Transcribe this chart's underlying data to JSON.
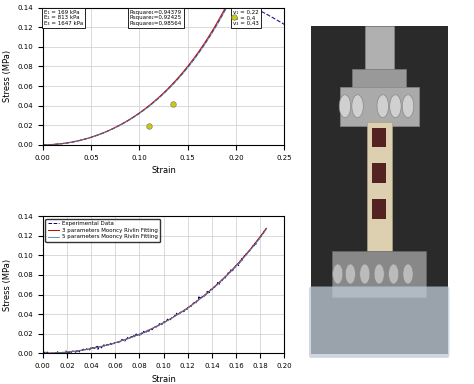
{
  "top_plot": {
    "xlabel": "Strain",
    "ylabel": "Stress (MPa)",
    "xlim": [
      0,
      0.25
    ],
    "ylim": [
      0,
      0.14
    ],
    "yticks": [
      0,
      0.02,
      0.04,
      0.06,
      0.08,
      0.1,
      0.12,
      0.14
    ],
    "xticks": [
      0,
      0.05,
      0.1,
      0.15,
      0.2,
      0.25
    ],
    "box1": "E₁ = 169 kPa\nE₂ = 813 kPa\nE₃ = 1647 kPa",
    "box2": "Rsquare₁=0,94379\nRsquare₂=0,92425\nRsquare₃=0,98564",
    "box3": "v₁ = 0,22\nv₂ = 0,4\nv₃ = 0,43",
    "marker_points": [
      [
        0.11,
        0.019
      ],
      [
        0.135,
        0.042
      ],
      [
        0.198,
        0.13
      ]
    ]
  },
  "bottom_plot": {
    "xlabel": "Strain",
    "ylabel": "Stress (MPa)",
    "xlim": [
      0,
      0.2
    ],
    "ylim": [
      0,
      0.14
    ],
    "yticks": [
      0,
      0.02,
      0.04,
      0.06,
      0.08,
      0.1,
      0.12,
      0.14
    ],
    "xticks": [
      0,
      0.02,
      0.04,
      0.06,
      0.08,
      0.1,
      0.12,
      0.14,
      0.16,
      0.18,
      0.2
    ],
    "legend": [
      "Experimental Data",
      "3 parameters Mooncy Rivlin Fitting",
      "5 parameters Mooncy Rivlin Fitting"
    ]
  },
  "colors": {
    "experimental": "#000080",
    "fit3": "#cc0000",
    "fit5": "#4488aa",
    "marker": "#cccc00",
    "grid": "#cccccc"
  }
}
